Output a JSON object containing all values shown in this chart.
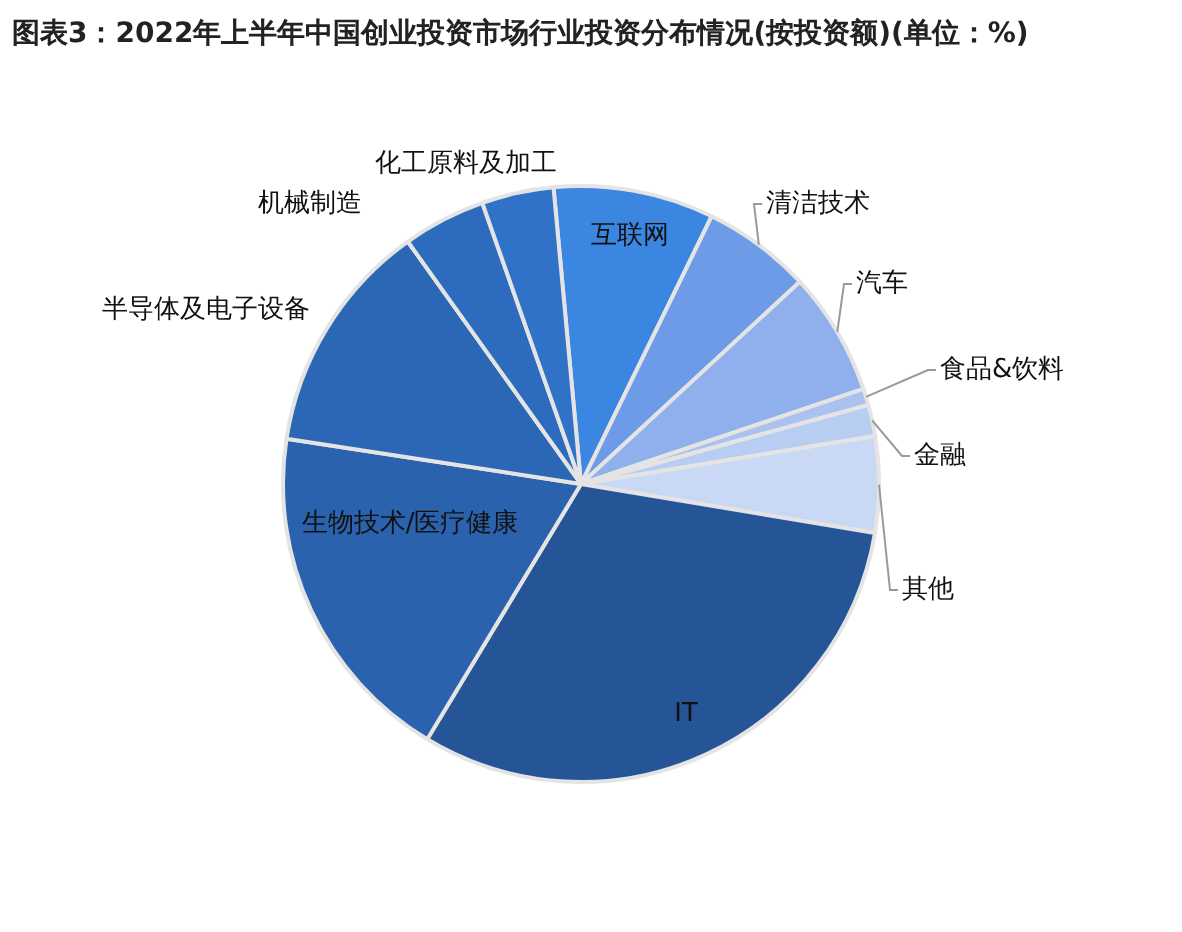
{
  "chart_data": {
    "type": "pie",
    "title": "图表3：2022年上半年中国创业投资市场行业投资分布情况(按投资额)(单位：%)",
    "categories": [
      "互联网",
      "清洁技术",
      "汽车",
      "食品&饮料",
      "金融",
      "其他",
      "IT",
      "生物技术/医疗健康",
      "半导体及电子设备",
      "机械制造",
      "化工原料及加工"
    ],
    "values": [
      8.7,
      5.9,
      6.7,
      0.9,
      1.7,
      5.2,
      31.0,
      18.8,
      12.7,
      4.5,
      3.9
    ],
    "colors": [
      "#3a86e0",
      "#6d9be8",
      "#8fb0ec",
      "#a9c2f0",
      "#b8cdf2",
      "#c9d8f5",
      "#255596",
      "#2a62ad",
      "#2b67b5",
      "#2c6bbd",
      "#2f72c8"
    ]
  }
}
